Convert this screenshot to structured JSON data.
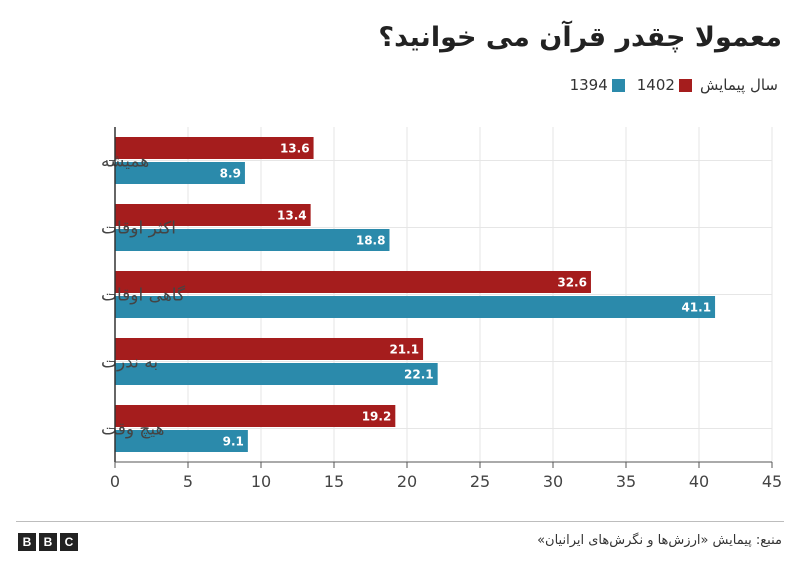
{
  "chart_data": {
    "type": "bar",
    "orientation": "horizontal",
    "title": "معمولا چقدر قرآن می خوانید؟",
    "legend_label": "سال پیمایش",
    "categories": [
      "همیشه",
      "اکثر اوقات",
      "گاهی اوقات",
      "به ندرت",
      "هیچ وقت"
    ],
    "series": [
      {
        "name": "1402",
        "color": "#a51d1d",
        "values": [
          13.6,
          13.4,
          32.6,
          21.1,
          19.2
        ]
      },
      {
        "name": "1394",
        "color": "#2b8aab",
        "values": [
          8.9,
          18.8,
          41.1,
          22.1,
          9.1
        ]
      }
    ],
    "xlim": [
      0,
      45
    ],
    "xticks": [
      "0",
      "5",
      "10",
      "15",
      "20",
      "25",
      "30",
      "35",
      "40",
      "45"
    ],
    "legend_position": "top-right",
    "grid": true
  },
  "footer": {
    "logo": [
      "B",
      "B",
      "C"
    ],
    "source": "منبع: پیمایش «ارزش‌ها و نگرش‌های ایرانیان»"
  }
}
